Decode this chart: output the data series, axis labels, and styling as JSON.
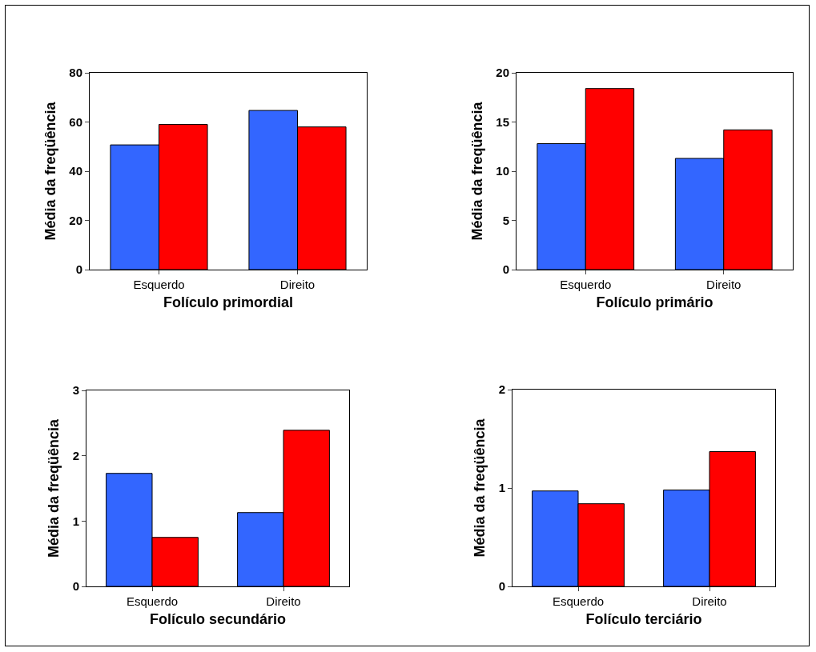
{
  "chart_data": [
    {
      "type": "bar",
      "categories": [
        "Esquerdo",
        "Direito"
      ],
      "series": [
        {
          "color": "#3366ff",
          "values": [
            50.7,
            64.7
          ]
        },
        {
          "color": "#ff0000",
          "values": [
            59,
            58
          ]
        }
      ],
      "xlabel": "Folículo primordial",
      "ylabel": "Média da freqüência",
      "ylim": [
        0,
        80
      ],
      "yticks": [
        0,
        20,
        40,
        60,
        80
      ],
      "grid": false
    },
    {
      "type": "bar",
      "categories": [
        "Esquerdo",
        "Direito"
      ],
      "series": [
        {
          "color": "#3366ff",
          "values": [
            12.8,
            11.3
          ]
        },
        {
          "color": "#ff0000",
          "values": [
            18.4,
            14.2
          ]
        }
      ],
      "xlabel": "Folículo primário",
      "ylabel": "Média da freqüência",
      "ylim": [
        0,
        20
      ],
      "yticks": [
        0,
        5,
        10,
        15,
        20
      ],
      "grid": false
    },
    {
      "type": "bar",
      "categories": [
        "Esquerdo",
        "Direito"
      ],
      "series": [
        {
          "color": "#3366ff",
          "values": [
            1.73,
            1.13
          ]
        },
        {
          "color": "#ff0000",
          "values": [
            0.75,
            2.39
          ]
        }
      ],
      "xlabel": "Folículo secundário",
      "ylabel": "Média da freqüência",
      "ylim": [
        0,
        3
      ],
      "yticks": [
        0,
        1,
        2,
        3
      ],
      "grid": false
    },
    {
      "type": "bar",
      "categories": [
        "Esquerdo",
        "Direito"
      ],
      "series": [
        {
          "color": "#3366ff",
          "values": [
            0.97,
            0.98
          ]
        },
        {
          "color": "#ff0000",
          "values": [
            0.84,
            1.37
          ]
        }
      ],
      "xlabel": "Folículo terciário",
      "ylabel": "Média da freqüência",
      "ylim": [
        0,
        2
      ],
      "yticks": [
        0,
        1,
        2
      ],
      "grid": false
    }
  ]
}
